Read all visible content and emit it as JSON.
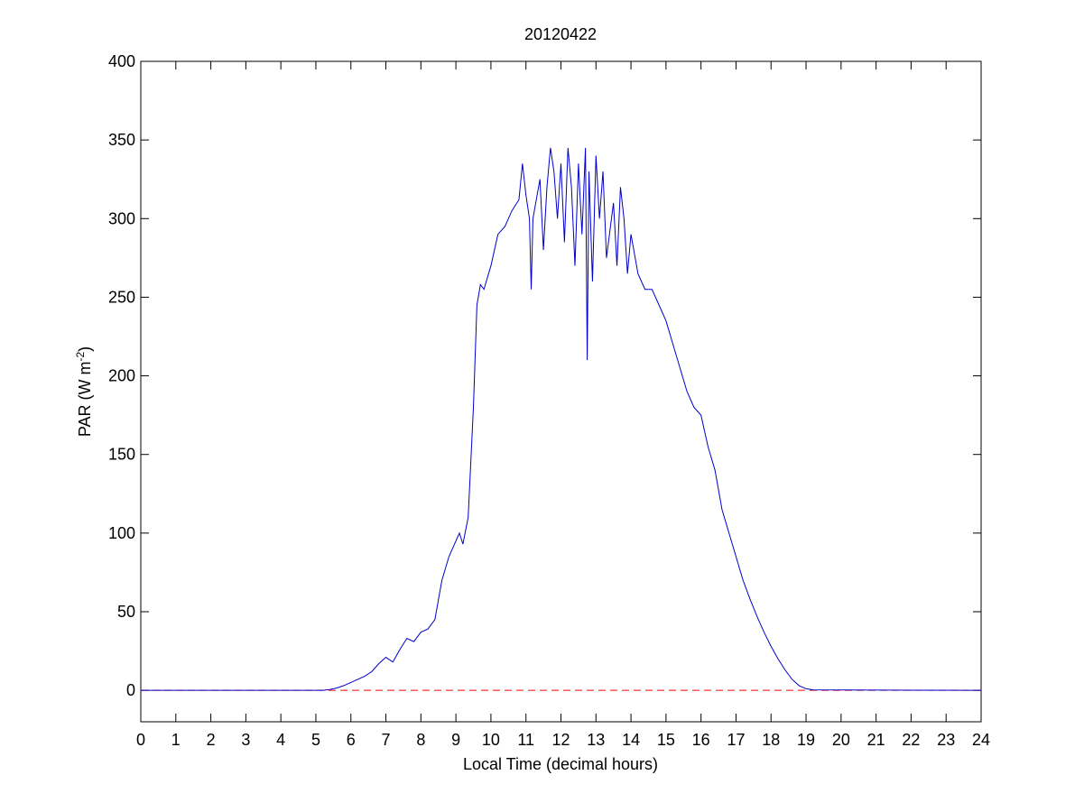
{
  "chart_data": {
    "type": "line",
    "title": "20120422",
    "xlabel": "Local Time (decimal hours)",
    "ylabel": {
      "text": "PAR (W m",
      "sup": "-2",
      "close": ")"
    },
    "color": "#0000cc",
    "hline": {
      "y": 0,
      "color": "#ff0000"
    },
    "xlim": [
      0,
      24
    ],
    "xticks": [
      0,
      1,
      2,
      3,
      4,
      5,
      6,
      7,
      8,
      9,
      10,
      11,
      12,
      13,
      14,
      15,
      16,
      17,
      18,
      19,
      20,
      21,
      22,
      23,
      24
    ],
    "ylim": [
      -20,
      400
    ],
    "yticks": [
      0,
      50,
      100,
      150,
      200,
      250,
      300,
      350,
      400
    ],
    "x": [
      0,
      5,
      5.2,
      5.4,
      5.6,
      5.8,
      6,
      6.2,
      6.4,
      6.6,
      6.8,
      7,
      7.2,
      7.4,
      7.6,
      7.8,
      8,
      8.2,
      8.4,
      8.6,
      8.8,
      9,
      9.1,
      9.2,
      9.35,
      9.5,
      9.6,
      9.7,
      9.8,
      10,
      10.2,
      10.4,
      10.6,
      10.8,
      10.9,
      11,
      11.1,
      11.15,
      11.2,
      11.4,
      11.5,
      11.6,
      11.7,
      11.8,
      11.9,
      12,
      12.1,
      12.2,
      12.3,
      12.4,
      12.5,
      12.6,
      12.7,
      12.75,
      12.8,
      12.9,
      13,
      13.1,
      13.2,
      13.3,
      13.5,
      13.6,
      13.7,
      13.8,
      13.9,
      14,
      14.2,
      14.4,
      14.6,
      14.8,
      15,
      15.2,
      15.4,
      15.6,
      15.8,
      16,
      16.2,
      16.4,
      16.6,
      16.8,
      17,
      17.2,
      17.4,
      17.6,
      17.8,
      18,
      18.2,
      18.4,
      18.6,
      18.8,
      19,
      19.2,
      24
    ],
    "values": [
      0,
      0,
      0,
      0.5,
      1.5,
      3,
      5,
      7,
      9,
      12,
      17,
      21,
      18,
      26,
      33,
      31,
      37,
      39,
      45,
      70,
      85,
      95,
      100,
      93,
      110,
      180,
      245,
      258,
      255,
      270,
      290,
      295,
      305,
      312,
      335,
      315,
      300,
      255,
      300,
      325,
      280,
      320,
      345,
      330,
      300,
      335,
      285,
      345,
      320,
      270,
      335,
      290,
      345,
      210,
      330,
      260,
      340,
      300,
      330,
      275,
      310,
      270,
      320,
      300,
      265,
      290,
      265,
      255,
      255,
      245,
      235,
      220,
      205,
      190,
      180,
      175,
      155,
      140,
      115,
      100,
      85,
      70,
      58,
      47,
      37,
      28,
      20,
      13,
      7,
      3,
      1,
      0.3,
      0
    ]
  }
}
